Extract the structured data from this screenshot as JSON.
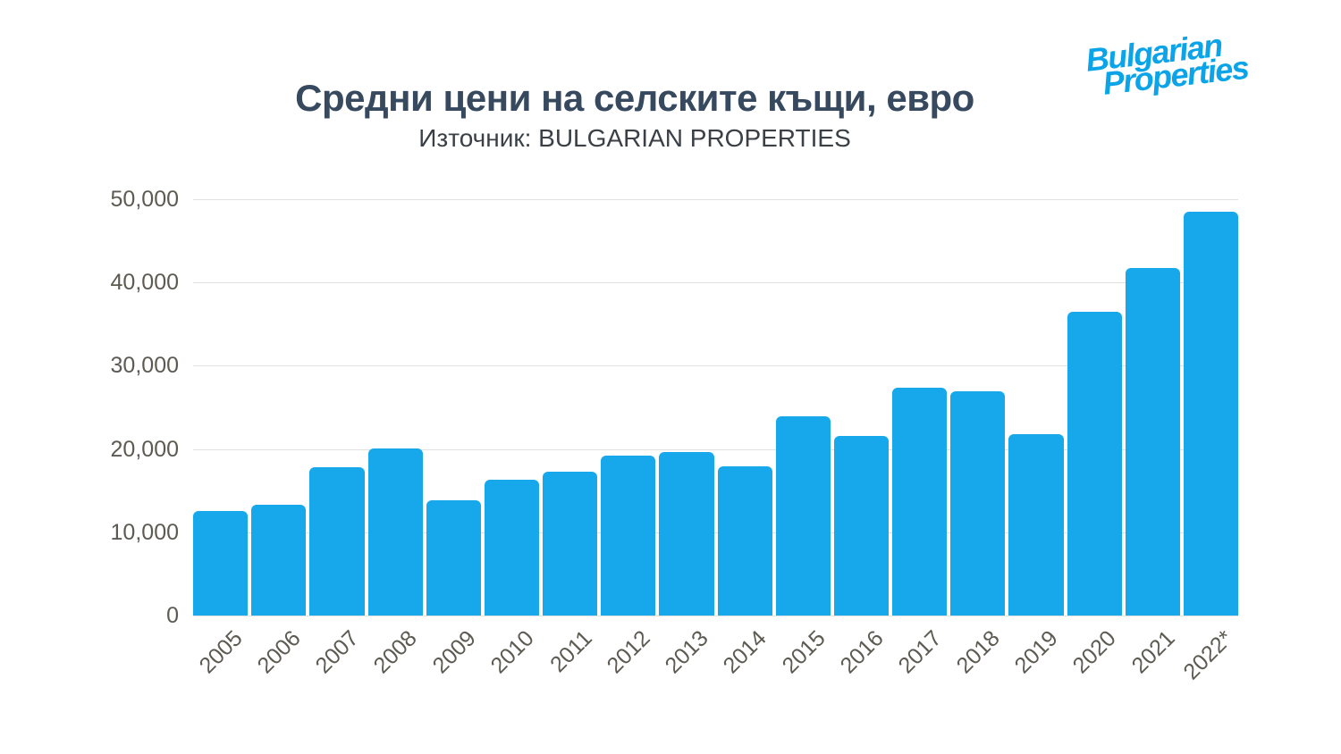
{
  "header": {
    "title": "Средни цени на селските къщи, евро",
    "subtitle": "Източник: BULGARIAN PROPERTIES"
  },
  "logo": {
    "line1": "Bulgarian",
    "line2": "Properties",
    "color": "#0ba4e8"
  },
  "chart_data": {
    "type": "bar",
    "title": "Средни цени на селските къщи, евро",
    "subtitle": "Източник: BULGARIAN PROPERTIES",
    "categories": [
      "2005",
      "2006",
      "2007",
      "2008",
      "2009",
      "2010",
      "2011",
      "2012",
      "2013",
      "2014",
      "2015",
      "2016",
      "2017",
      "2018",
      "2019",
      "2020",
      "2021",
      "2022*"
    ],
    "values": [
      12600,
      13300,
      17800,
      20100,
      13800,
      16300,
      17300,
      19200,
      19600,
      17900,
      23900,
      21600,
      27400,
      26900,
      21800,
      36500,
      41700,
      48500
    ],
    "ylim": [
      0,
      50000
    ],
    "ytick_values": [
      0,
      10000,
      20000,
      30000,
      40000,
      50000
    ],
    "ytick_labels": [
      "0",
      "10,000",
      "20,000",
      "30,000",
      "40,000",
      "50,000"
    ],
    "xlabel": "",
    "ylabel": "",
    "grid": true,
    "legend": false,
    "bar_color": "#17a8ec",
    "gridline_color": "#e2e1de",
    "tick_text_color": "#5d5a52",
    "title_color": "#36495e",
    "subtitle_color": "#3a4046"
  }
}
